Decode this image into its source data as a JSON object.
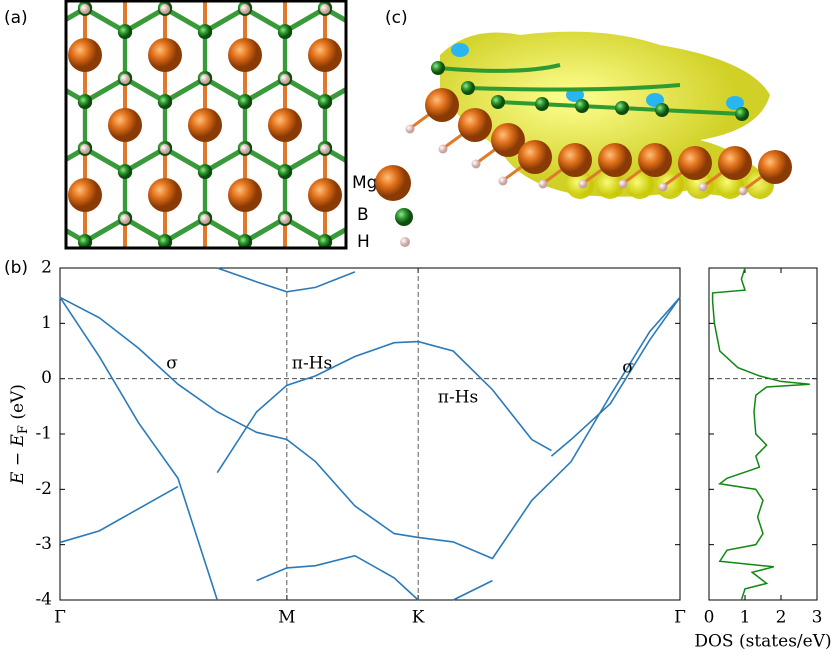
{
  "panel_labels": [
    "(a)",
    "(b)",
    "(c)"
  ],
  "legend": [
    "Mg",
    "B",
    "H"
  ],
  "chart_data": [
    {
      "type": "line",
      "color": "#2a7ab9",
      "x": [
        0,
        0.1,
        0.2,
        0.3,
        0.4,
        0.5,
        0.577,
        0.65,
        0.75,
        0.85,
        0.911,
        1.0,
        1.1,
        1.2,
        1.25,
        1.3,
        1.4,
        1.5,
        1.577
      ],
      "xlim": [
        0,
        1.577
      ],
      "xticks": [
        {
          "value": 0,
          "label": "Γ"
        },
        {
          "value": 0.577,
          "label": "M"
        },
        {
          "value": 0.911,
          "label": "K"
        },
        {
          "value": 1.577,
          "label": "Γ"
        }
      ],
      "ylim": [
        -4,
        2
      ],
      "yticks": [
        -4,
        -3,
        -2,
        -1,
        0,
        1,
        2
      ],
      "ylabel": [
        "E − E",
        "F",
        " (eV)"
      ],
      "fermi_level": 0,
      "annotations": [
        "σ",
        "π-Hs",
        "π-Hs",
        "σ"
      ],
      "series": [
        {
          "values": [
            1.47,
            1.1,
            0.55,
            -0.1,
            -0.6,
            -0.97,
            -1.1,
            -1.5,
            -2.3,
            -2.8,
            -2.87,
            -2.95,
            -3.25,
            -2.2,
            -1.85,
            -1.5,
            -0.3,
            0.85,
            1.47
          ]
        },
        {
          "values": [
            1.47,
            0.4,
            -0.8,
            -1.8,
            -4.0,
            null,
            null,
            null,
            null,
            null,
            null,
            null,
            null,
            null,
            null,
            null,
            null,
            null,
            null
          ]
        },
        {
          "values": [
            -2.96,
            -2.75,
            -2.35,
            -1.95,
            null,
            null,
            null,
            null,
            null,
            null,
            null,
            null,
            null,
            null,
            null,
            null,
            null,
            null,
            null
          ]
        },
        {
          "values": [
            null,
            null,
            null,
            null,
            -1.7,
            -0.6,
            -0.12,
            0.05,
            0.4,
            0.65,
            0.67,
            0.5,
            -0.2,
            -1.1,
            -1.3,
            null,
            null,
            null,
            null
          ]
        },
        {
          "values": [
            null,
            null,
            null,
            null,
            null,
            null,
            null,
            null,
            null,
            null,
            null,
            null,
            null,
            null,
            -1.4,
            -1.1,
            -0.45,
            0.7,
            1.47
          ]
        },
        {
          "values": [
            null,
            null,
            null,
            null,
            2.0,
            1.75,
            1.57,
            1.65,
            1.93,
            null,
            null,
            null,
            null,
            null,
            null,
            null,
            null,
            null,
            null
          ]
        },
        {
          "values": [
            null,
            null,
            null,
            null,
            null,
            -3.65,
            -3.42,
            -3.38,
            -3.2,
            -3.6,
            -4.0,
            null,
            null,
            null,
            null,
            null,
            null,
            null,
            null
          ]
        },
        {
          "values": [
            null,
            null,
            null,
            null,
            null,
            null,
            null,
            null,
            null,
            null,
            null,
            -4.0,
            -3.65,
            null,
            null,
            null,
            null,
            null,
            null
          ]
        }
      ]
    },
    {
      "type": "line",
      "orientation": "horizontal",
      "color": "#118811",
      "y": [
        2,
        1.8,
        1.6,
        1.55,
        1.4,
        1.0,
        0.5,
        0.2,
        0.05,
        -0.05,
        -0.1,
        -0.15,
        -0.3,
        -0.6,
        -1.0,
        -1.2,
        -1.4,
        -1.6,
        -1.8,
        -1.9,
        -2.0,
        -2.2,
        -2.5,
        -2.8,
        -3.0,
        -3.1,
        -3.3,
        -3.4,
        -3.5,
        -3.7,
        -3.8,
        -4.0
      ],
      "values": [
        1.0,
        0.9,
        1.0,
        0.1,
        0.1,
        0.15,
        0.3,
        0.8,
        1.4,
        2.0,
        2.8,
        1.6,
        1.3,
        1.25,
        1.3,
        1.6,
        1.3,
        1.4,
        0.5,
        0.3,
        1.3,
        1.5,
        1.35,
        1.5,
        1.3,
        0.5,
        0.3,
        1.8,
        1.2,
        1.6,
        1.0,
        0.9
      ],
      "xlim": [
        0,
        3
      ],
      "xticks": [
        0,
        1,
        2,
        3
      ],
      "ylim": [
        -4,
        2
      ],
      "xlabel": "DOS (states/eV)"
    }
  ]
}
